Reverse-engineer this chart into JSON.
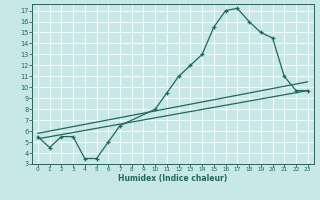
{
  "xlabel": "Humidex (Indice chaleur)",
  "bg_color": "#c8e8e8",
  "grid_color": "#b0d8d8",
  "line_color": "#1a6b5a",
  "xlim": [
    -0.5,
    23.5
  ],
  "ylim": [
    3.0,
    17.6
  ],
  "yticks": [
    3,
    4,
    5,
    6,
    7,
    8,
    9,
    10,
    11,
    12,
    13,
    14,
    15,
    16,
    17
  ],
  "xticks": [
    0,
    1,
    2,
    3,
    4,
    5,
    6,
    7,
    8,
    9,
    10,
    11,
    12,
    13,
    14,
    15,
    16,
    17,
    18,
    19,
    20,
    21,
    22,
    23
  ],
  "series1_x": [
    0,
    1,
    2,
    3,
    4,
    5,
    6,
    7,
    10,
    11,
    12,
    13,
    14,
    15,
    16,
    17,
    18,
    19,
    20,
    21,
    22,
    23
  ],
  "series1_y": [
    5.5,
    4.5,
    5.5,
    5.5,
    3.5,
    3.5,
    5.0,
    6.5,
    8.0,
    9.5,
    11.0,
    12.0,
    13.0,
    15.5,
    17.0,
    17.2,
    16.0,
    15.0,
    14.5,
    11.0,
    9.7,
    9.7
  ],
  "series2_x": [
    0,
    23
  ],
  "series2_y": [
    5.3,
    9.7
  ],
  "series3_x": [
    0,
    23
  ],
  "series3_y": [
    5.8,
    10.5
  ]
}
